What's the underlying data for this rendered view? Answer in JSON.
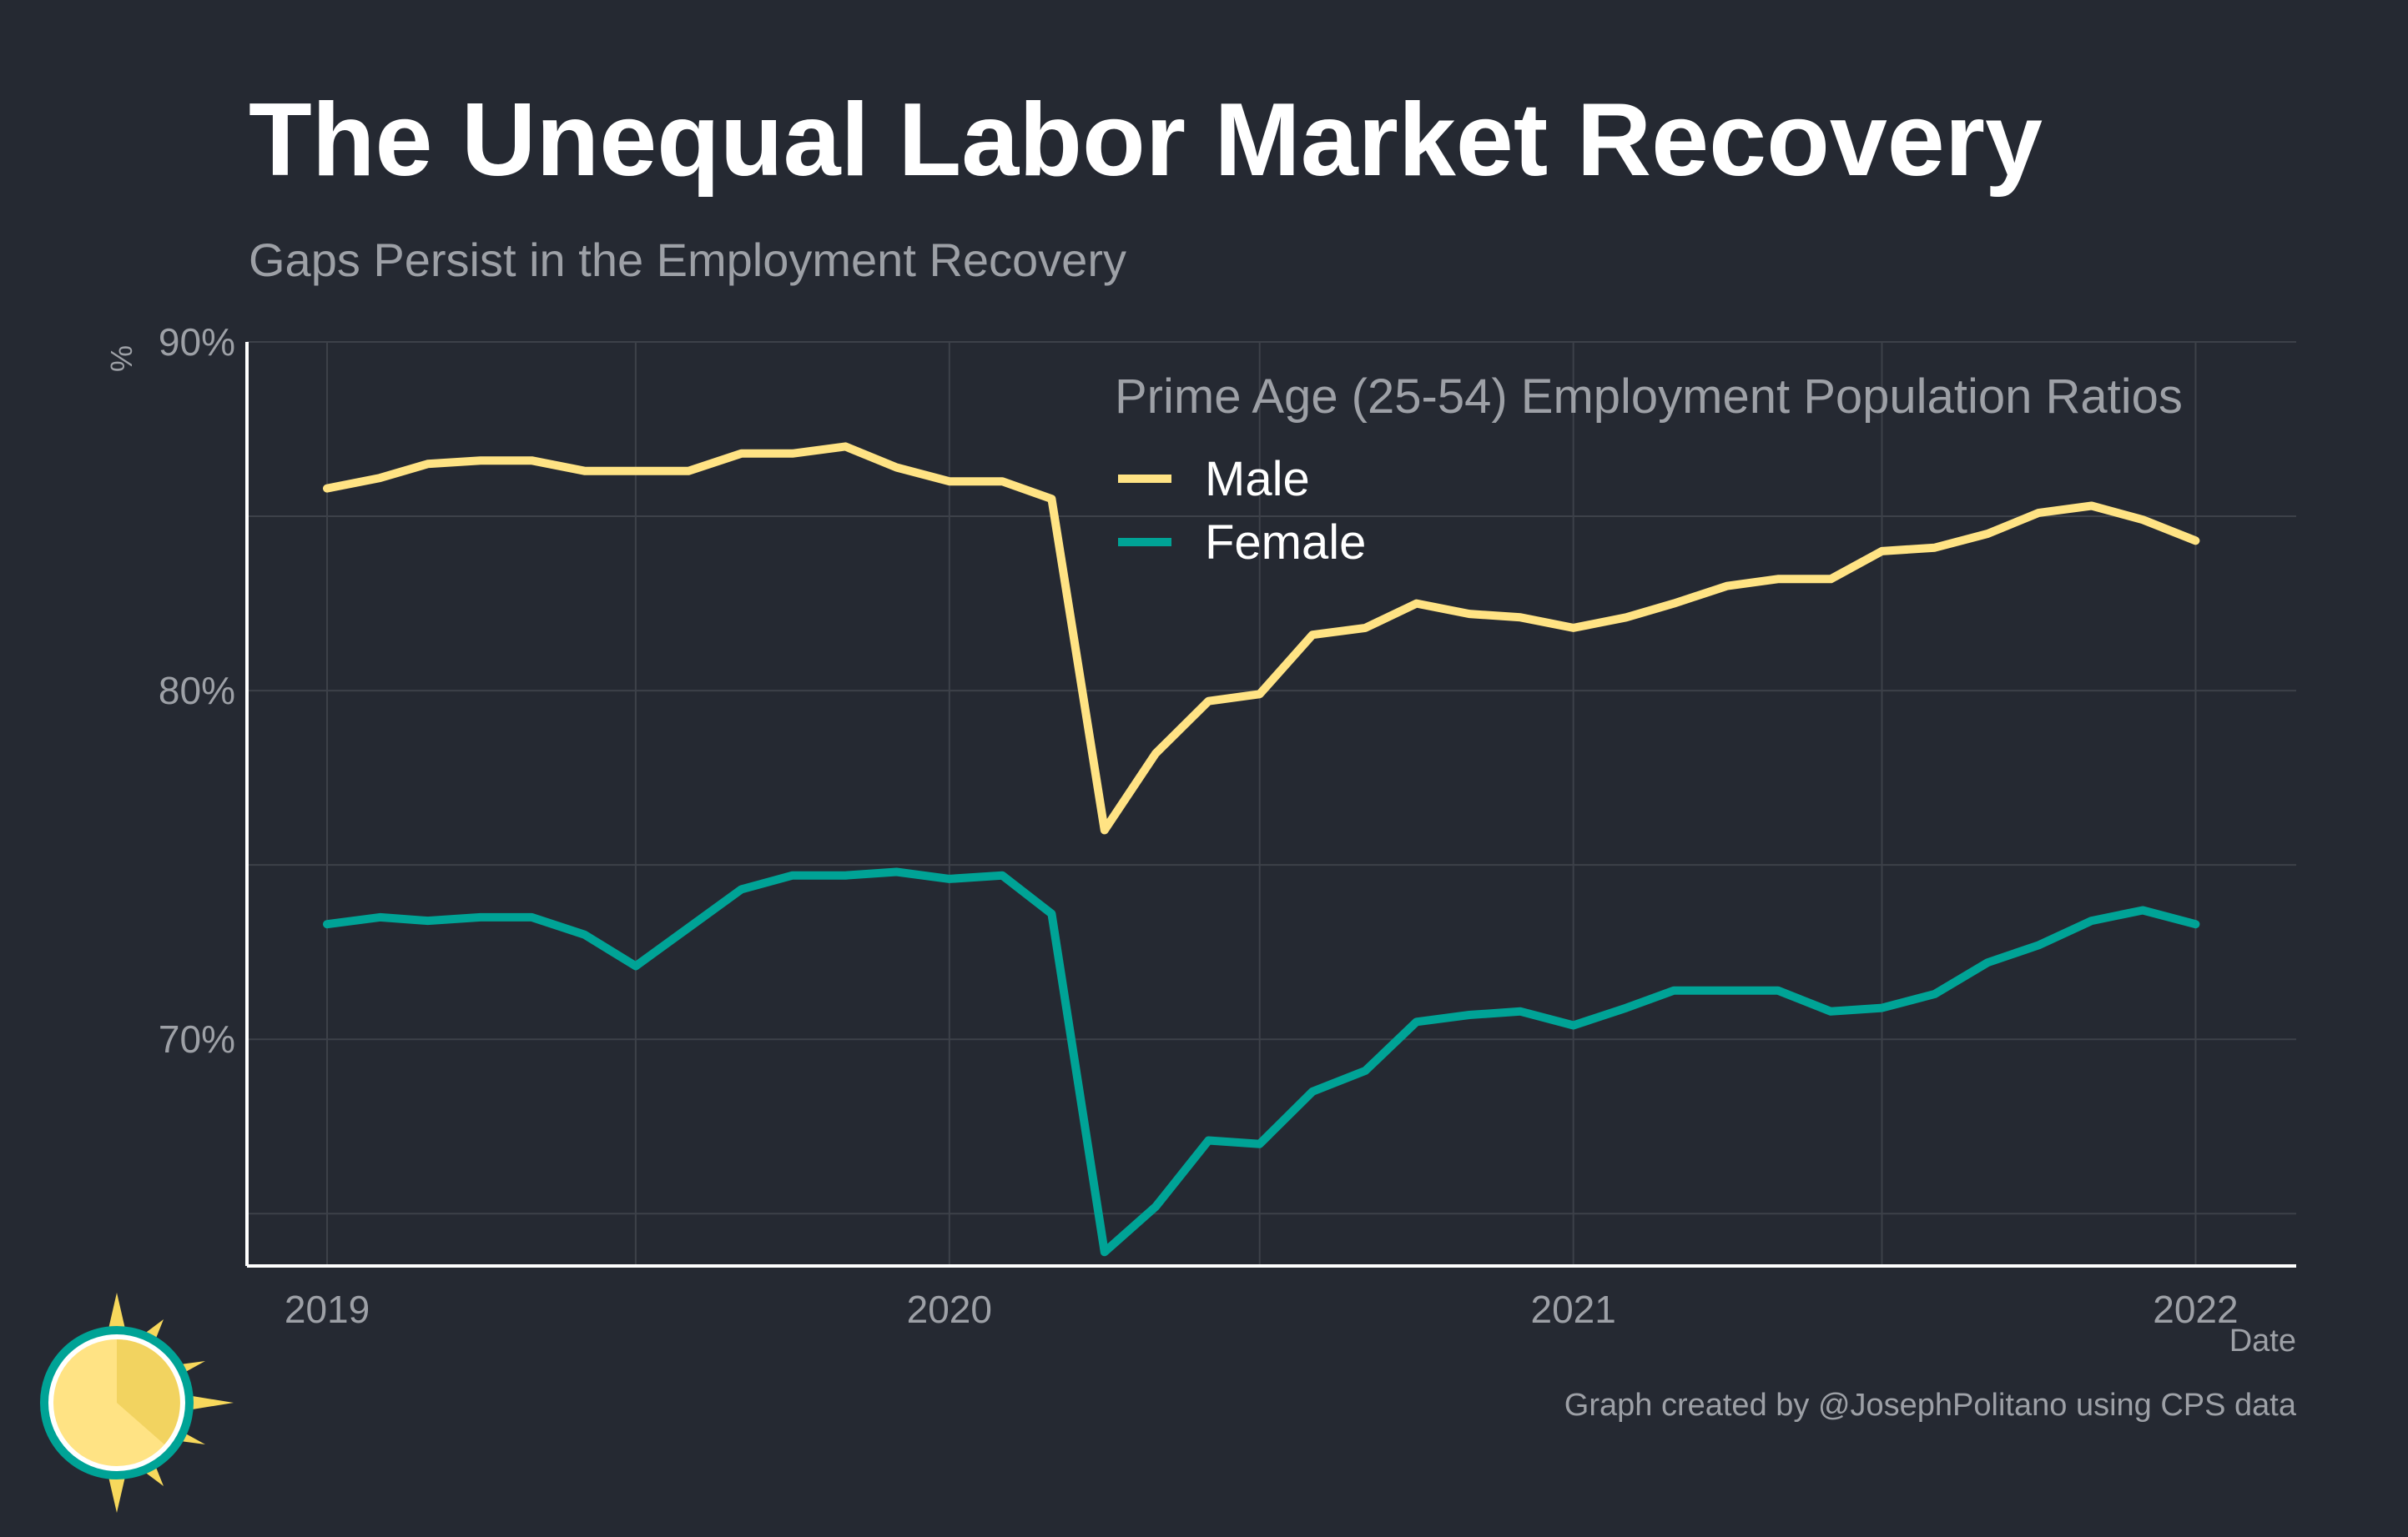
{
  "title": "The Unequal Labor Market Recovery",
  "subtitle": "Gaps Persist in the Employment Recovery",
  "credit": "Graph created by @JosephPolitano using CPS data",
  "colors": {
    "background": "#252932",
    "grid": "#3d4149",
    "axis": "#ffffff",
    "text": "#9da0a6",
    "male": "#ffe384",
    "female": "#00a396"
  },
  "chart_data": {
    "type": "line",
    "xlabel": "Date",
    "ylabel": "%",
    "xlim": [
      "2018-11-15",
      "2022-03-01"
    ],
    "ylim": [
      63.5,
      90
    ],
    "y_ticks": [
      70,
      80,
      90
    ],
    "y_tick_labels": [
      "70%",
      "80%",
      "90%"
    ],
    "y_minor": [
      65,
      75,
      85
    ],
    "x_ticks": [
      "2019-01-01",
      "2020-01-01",
      "2021-01-01",
      "2022-01-01"
    ],
    "x_tick_labels": [
      "2019",
      "2020",
      "2021",
      "2022"
    ],
    "x_minor": [
      "2019-07-01",
      "2020-07-01",
      "2021-07-01"
    ],
    "grid": true,
    "legend": {
      "title": "Prime Age (25-54) Employment Population Ratios",
      "position": "top-right"
    },
    "x": [
      "2019-01",
      "2019-02",
      "2019-03",
      "2019-04",
      "2019-05",
      "2019-06",
      "2019-07",
      "2019-08",
      "2019-09",
      "2019-10",
      "2019-11",
      "2019-12",
      "2020-01",
      "2020-02",
      "2020-03",
      "2020-04",
      "2020-05",
      "2020-06",
      "2020-07",
      "2020-08",
      "2020-09",
      "2020-10",
      "2020-11",
      "2020-12",
      "2021-01",
      "2021-02",
      "2021-03",
      "2021-04",
      "2021-05",
      "2021-06",
      "2021-07",
      "2021-08",
      "2021-09",
      "2021-10",
      "2021-11",
      "2021-12",
      "2022-01"
    ],
    "series": [
      {
        "name": "Male",
        "color": "#ffe384",
        "values": [
          85.8,
          86.1,
          86.5,
          86.6,
          86.6,
          86.3,
          86.3,
          86.3,
          86.8,
          86.8,
          87.0,
          86.4,
          86.0,
          86.0,
          85.5,
          76.0,
          78.2,
          79.7,
          79.9,
          81.6,
          81.8,
          82.5,
          82.2,
          82.1,
          81.8,
          82.1,
          82.5,
          83.0,
          83.2,
          83.2,
          84.0,
          84.1,
          84.5,
          85.1,
          85.3,
          84.9,
          84.3
        ]
      },
      {
        "name": "Female",
        "color": "#00a396",
        "values": [
          73.3,
          73.5,
          73.4,
          73.5,
          73.5,
          73.0,
          72.1,
          73.2,
          74.3,
          74.7,
          74.7,
          74.8,
          74.6,
          74.7,
          73.6,
          63.9,
          65.2,
          67.1,
          67.0,
          68.5,
          69.1,
          70.5,
          70.7,
          70.8,
          70.4,
          70.9,
          71.4,
          71.4,
          71.4,
          70.8,
          70.9,
          71.3,
          72.2,
          72.7,
          73.4,
          73.7,
          73.3
        ]
      }
    ]
  }
}
